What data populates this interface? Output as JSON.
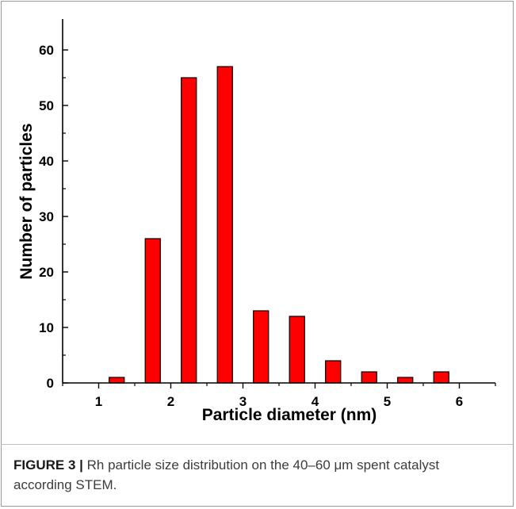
{
  "chart_data": {
    "type": "bar",
    "title": "",
    "xlabel": "Particle diameter (nm)",
    "ylabel": "Number of particles",
    "xlim": [
      0.5,
      6.5
    ],
    "ylim": [
      0,
      65
    ],
    "x_ticks": [
      1,
      2,
      3,
      4,
      5,
      6
    ],
    "y_ticks": [
      0,
      10,
      20,
      30,
      40,
      50,
      60
    ],
    "x": [
      1.25,
      1.75,
      2.25,
      2.75,
      3.25,
      3.75,
      4.25,
      4.75,
      5.25,
      5.75
    ],
    "values": [
      1,
      26,
      55,
      57,
      13,
      12,
      4,
      2,
      1,
      2
    ],
    "bar_color": "#ff0000",
    "grid": false,
    "legend": "none"
  },
  "caption": {
    "label": "FIGURE 3",
    "separator": "|",
    "text": "Rh particle size distribution on the 40–60 μm spent catalyst according STEM."
  }
}
